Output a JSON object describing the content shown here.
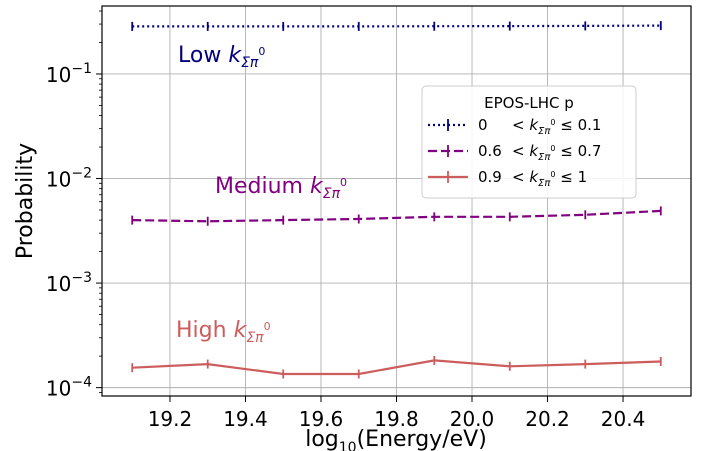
{
  "chart_data": {
    "type": "line",
    "xlabel": "log10(Energy/eV)",
    "ylabel": "Probability",
    "xlim": [
      19.02,
      20.58
    ],
    "ylim_log10": [
      -4.08,
      -0.35
    ],
    "y_scale": "log",
    "grid": true,
    "x_ticks": [
      19.2,
      19.4,
      19.6,
      19.8,
      20.0,
      20.2,
      20.4
    ],
    "x_tick_labels": [
      "19.2",
      "19.4",
      "19.6",
      "19.8",
      "20.0",
      "20.2",
      "20.4"
    ],
    "y_tick_exponents": [
      -1,
      -2,
      -3,
      -4
    ],
    "y_tick_base": "10",
    "legend": {
      "title": "EPOS-LHC p",
      "placement": "center-right",
      "entries": [
        {
          "low": "0",
          "high": "0.1"
        },
        {
          "low": "0.6",
          "high": "0.7"
        },
        {
          "low": "0.9",
          "high": "1"
        }
      ],
      "symbol_lt": "<",
      "symbol_le": "≤",
      "k_base": "k",
      "k_sub": "Σπ",
      "k_sup": "0"
    },
    "x": [
      19.1,
      19.3,
      19.5,
      19.7,
      19.9,
      20.1,
      20.3,
      20.5
    ],
    "series": [
      {
        "label": "Low",
        "color": "#000080",
        "dash": "dotted",
        "values": [
          0.285,
          0.285,
          0.285,
          0.285,
          0.286,
          0.287,
          0.288,
          0.29
        ]
      },
      {
        "label": "Medium",
        "color": "#800080",
        "dash": "dashed",
        "values": [
          0.004,
          0.0039,
          0.004,
          0.0041,
          0.0043,
          0.0043,
          0.0045,
          0.0049
        ]
      },
      {
        "label": "High",
        "color": "#CD5C5C",
        "dash": "solid",
        "values": [
          0.000155,
          0.000168,
          0.000135,
          0.000135,
          0.000182,
          0.00016,
          0.000168,
          0.000178
        ]
      }
    ]
  }
}
